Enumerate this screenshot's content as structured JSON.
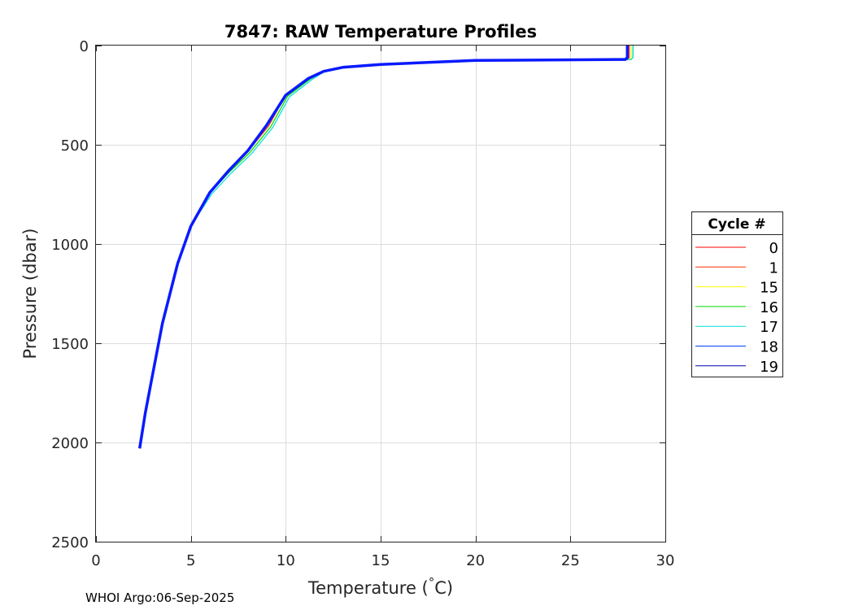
{
  "chart_data": {
    "type": "line",
    "title": "7847: RAW Temperature Profiles",
    "xlabel_main": "Temperature (",
    "xlabel_deg": "°",
    "xlabel_unit": "C)",
    "ylabel": "Pressure (dbar)",
    "xlim": [
      0,
      30
    ],
    "ylim": [
      0,
      2500
    ],
    "y_reversed": true,
    "x_ticks": [
      0,
      5,
      10,
      15,
      20,
      25,
      30
    ],
    "y_ticks": [
      0,
      500,
      1000,
      1500,
      2000,
      2500
    ],
    "grid": true,
    "legend": {
      "title": "Cycle #",
      "placement": "right",
      "entries": [
        {
          "label": "0",
          "color": "#ff0000"
        },
        {
          "label": "1",
          "color": "#ff3000"
        },
        {
          "label": "15",
          "color": "#ffff00"
        },
        {
          "label": "16",
          "color": "#00dd00"
        },
        {
          "label": "17",
          "color": "#00dddd"
        },
        {
          "label": "18",
          "color": "#0040ff"
        },
        {
          "label": "19",
          "color": "#0000aa"
        }
      ]
    },
    "series": [
      {
        "name": "0",
        "color": "#ff0000",
        "temperature": [
          28.0,
          28.0,
          27.9,
          20.0,
          15.0,
          13.0,
          12.0,
          11.2,
          10.0,
          9.0,
          8.0,
          7.0,
          6.0,
          5.0,
          4.3,
          3.5,
          3.0,
          2.6,
          2.3
        ],
        "pressure": [
          0,
          60,
          70,
          75,
          95,
          110,
          130,
          165,
          250,
          400,
          530,
          630,
          740,
          910,
          1100,
          1400,
          1650,
          1850,
          2030
        ]
      },
      {
        "name": "1",
        "color": "#ff3000",
        "temperature": [
          28.1,
          28.1,
          28.0,
          20.0,
          15.0,
          13.0,
          12.0,
          11.2,
          10.0,
          9.1,
          8.0,
          7.0,
          6.0,
          5.0,
          4.3,
          3.5,
          3.0,
          2.6,
          2.3
        ],
        "pressure": [
          0,
          60,
          70,
          76,
          96,
          111,
          130,
          165,
          250,
          405,
          535,
          635,
          742,
          910,
          1100,
          1400,
          1650,
          1850,
          2030
        ]
      },
      {
        "name": "15",
        "color": "#ffff00",
        "temperature": [
          28.2,
          28.2,
          28.1,
          20.0,
          15.0,
          13.0,
          12.0,
          11.3,
          10.1,
          9.2,
          8.1,
          7.0,
          6.0,
          5.0,
          4.3,
          3.5,
          3.0,
          2.6,
          2.3
        ],
        "pressure": [
          0,
          60,
          70,
          77,
          97,
          112,
          132,
          168,
          255,
          410,
          540,
          640,
          745,
          910,
          1100,
          1400,
          1650,
          1850,
          2030
        ]
      },
      {
        "name": "16",
        "color": "#00dd00",
        "temperature": [
          28.3,
          28.3,
          28.2,
          20.0,
          15.0,
          13.0,
          12.0,
          11.3,
          10.1,
          9.2,
          8.1,
          7.0,
          6.0,
          5.0,
          4.3,
          3.5,
          3.0,
          2.6,
          2.3
        ],
        "pressure": [
          0,
          60,
          70,
          77,
          97,
          112,
          132,
          168,
          255,
          410,
          540,
          640,
          745,
          910,
          1100,
          1400,
          1650,
          1850,
          2030
        ]
      },
      {
        "name": "17",
        "color": "#00dddd",
        "temperature": [
          28.3,
          28.3,
          28.2,
          20.0,
          15.0,
          13.0,
          12.0,
          11.4,
          10.2,
          9.3,
          8.2,
          7.1,
          6.1,
          5.0,
          4.3,
          3.5,
          3.0,
          2.6,
          2.3
        ],
        "pressure": [
          0,
          60,
          70,
          78,
          98,
          113,
          133,
          170,
          258,
          415,
          545,
          645,
          748,
          910,
          1100,
          1400,
          1650,
          1850,
          2030
        ]
      },
      {
        "name": "18",
        "color": "#0040ff",
        "temperature": [
          28.0,
          28.0,
          28.0,
          20.0,
          15.0,
          13.0,
          12.0,
          11.2,
          10.0,
          9.0,
          8.0,
          7.0,
          6.0,
          5.0,
          4.3,
          3.5,
          3.0,
          2.6,
          2.3
        ],
        "pressure": [
          0,
          60,
          70,
          75,
          95,
          110,
          130,
          165,
          250,
          400,
          530,
          630,
          740,
          910,
          1100,
          1400,
          1650,
          1850,
          2030
        ]
      },
      {
        "name": "19",
        "color": "#0000aa",
        "temperature": [
          28.0,
          28.0,
          27.9,
          20.0,
          15.0,
          13.0,
          12.0,
          11.2,
          10.0,
          9.0,
          8.0,
          7.0,
          6.0,
          5.0,
          4.3,
          3.5,
          3.0,
          2.6,
          2.3
        ],
        "pressure": [
          0,
          60,
          70,
          75,
          95,
          110,
          130,
          165,
          250,
          400,
          530,
          630,
          740,
          910,
          1100,
          1400,
          1650,
          1850,
          2030
        ]
      }
    ]
  },
  "footer": "WHOI Argo:06-Sep-2025"
}
